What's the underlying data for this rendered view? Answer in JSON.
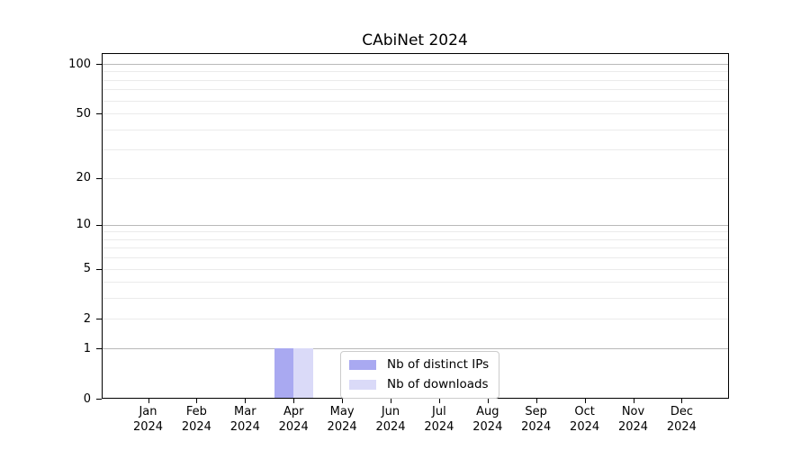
{
  "chart_data": {
    "type": "bar",
    "title": "CAbiNet 2024",
    "months": [
      "Jan",
      "Feb",
      "Mar",
      "Apr",
      "May",
      "Jun",
      "Jul",
      "Aug",
      "Sep",
      "Oct",
      "Nov",
      "Dec"
    ],
    "year": "2024",
    "series": [
      {
        "name": "Nb of distinct IPs",
        "color": "#a9a9f1",
        "values": [
          0,
          0,
          0,
          1,
          0,
          0,
          0,
          0,
          0,
          0,
          0,
          0
        ]
      },
      {
        "name": "Nb of downloads",
        "color": "#dadaf8",
        "values": [
          0,
          0,
          0,
          1,
          0,
          0,
          0,
          0,
          0,
          0,
          0,
          0
        ]
      }
    ],
    "y_scale": "log1p",
    "ylim": [
      0,
      100
    ],
    "y_ticks": [
      0,
      1,
      2,
      5,
      10,
      20,
      50,
      100
    ],
    "y_major_gridlines": [
      1,
      10,
      100
    ],
    "y_minor_gridlines": [
      2,
      3,
      4,
      5,
      6,
      7,
      8,
      9,
      20,
      30,
      40,
      50,
      60,
      70,
      80,
      90
    ],
    "xlabel": "",
    "ylabel": "",
    "grid": true,
    "legend_position": "bottom-center"
  },
  "colors": {
    "background": "#ffffff",
    "axis": "#000000",
    "grid_major": "#b9b9b9",
    "grid_minor": "#ebebeb",
    "bar_distinct_ips": "#a9a9f1",
    "bar_downloads": "#dadaf8",
    "legend_border": "#cccccc"
  }
}
